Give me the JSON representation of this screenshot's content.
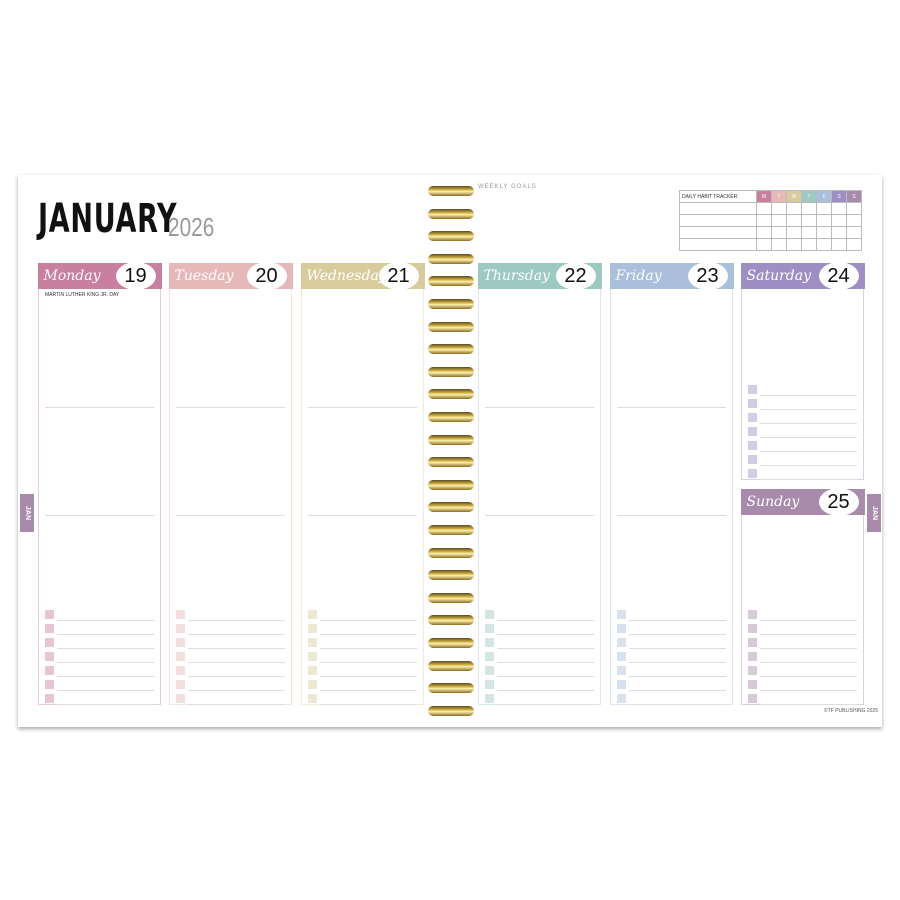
{
  "header": {
    "month": "JANUARY",
    "year": "2026"
  },
  "weekly_goals_label": "WEEKLY GOALS",
  "habit_tracker": {
    "label": "DAILY HABIT TRACKER:",
    "days": [
      "M",
      "T",
      "W",
      "T",
      "F",
      "S",
      "S"
    ],
    "colors": [
      "#c97fa0",
      "#e6b9b8",
      "#d8cc9c",
      "#9ec8c2",
      "#a9bfdc",
      "#9d8ec4",
      "#a88aab"
    ],
    "rows": 4
  },
  "days": [
    {
      "name": "Monday",
      "date": "19",
      "color": "#c97fa0",
      "note": "Martin Luther King Jr. Day"
    },
    {
      "name": "Tuesday",
      "date": "20",
      "color": "#e6b9b8"
    },
    {
      "name": "Wednesday",
      "date": "21",
      "color": "#d8cc9c"
    },
    {
      "name": "Thursday",
      "date": "22",
      "color": "#9ec8c2"
    },
    {
      "name": "Friday",
      "date": "23",
      "color": "#a9bfdc"
    },
    {
      "name": "Saturday",
      "date": "24",
      "color": "#9d8ec4"
    },
    {
      "name": "Sunday",
      "date": "25",
      "color": "#a88aab"
    }
  ],
  "month_tab": {
    "label": "JAN",
    "left_color": "#a88aab",
    "right_color": "#a88aab"
  },
  "copyright": "©TF PUBLISHING 2025"
}
